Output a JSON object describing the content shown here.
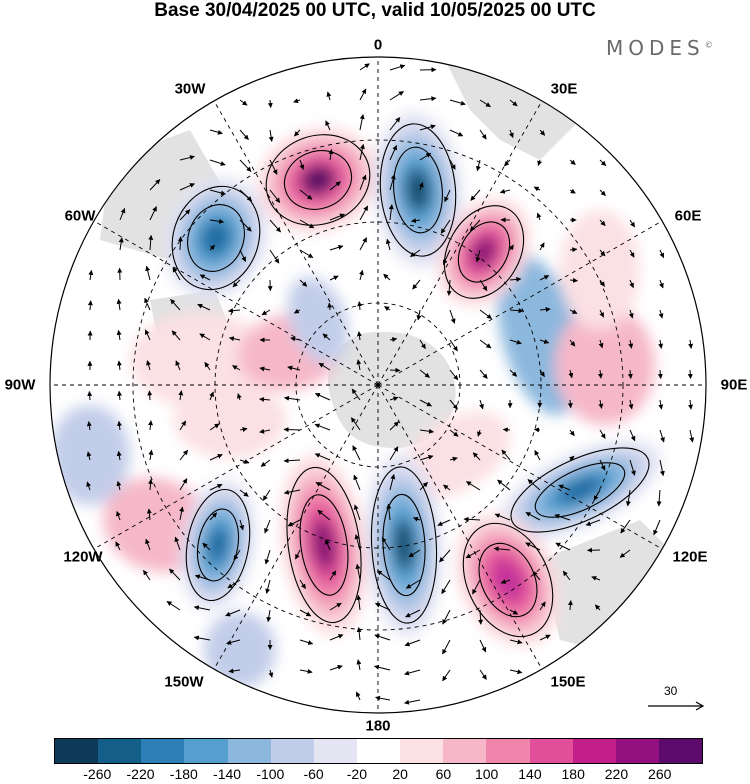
{
  "title": "Base 30/04/2025 00 UTC, valid 10/05/2025 00 UTC",
  "brand": {
    "name": "MODES",
    "mark": "©"
  },
  "map": {
    "projection": "south-polar-stereographic",
    "graticule": "dashed",
    "longitude_labels": {
      "top": "0",
      "upper_left_30": "30W",
      "upper_right_30": "30E",
      "left_60": "60W",
      "right_60": "60E",
      "left_90": "90W",
      "right_90": "90E",
      "lower_left_120": "120W",
      "lower_right_120": "120E",
      "lower_left_150": "150W",
      "lower_right_150": "150E",
      "bottom": "180"
    },
    "reference_vector": "30",
    "anomaly_centers": [
      {
        "name": "positive-anomaly",
        "lon_hint": "30W",
        "color": "#5a0a64"
      },
      {
        "name": "negative-anomaly",
        "lon_hint": "15E",
        "color": "#134e6f"
      },
      {
        "name": "positive-anomaly",
        "lon_hint": "40E",
        "color": "#8a1474"
      },
      {
        "name": "negative-anomaly",
        "lon_hint": "60W",
        "color": "#1f6aa0"
      },
      {
        "name": "negative-anomaly",
        "lon_hint": "105E",
        "color": "#1f6aa0"
      },
      {
        "name": "positive-anomaly",
        "lon_hint": "160W",
        "color": "#8a1474"
      },
      {
        "name": "negative-anomaly",
        "lon_hint": "175E",
        "color": "#134e6f"
      },
      {
        "name": "negative-anomaly",
        "lon_hint": "135W",
        "color": "#1f6aa0"
      },
      {
        "name": "positive-anomaly",
        "lon_hint": "150E",
        "color": "#c2329a"
      }
    ]
  },
  "colorbar": {
    "colors": [
      "#0c3a57",
      "#135f8a",
      "#2b7fb6",
      "#559fcf",
      "#8cb8de",
      "#c2cde9",
      "#e4e4f3",
      "#ffffff",
      "#fbe0e4",
      "#f6b8c9",
      "#ef85ab",
      "#e14f9a",
      "#c21f8a",
      "#931080",
      "#5c0a6c"
    ],
    "labels": [
      "-260",
      "-220",
      "-180",
      "-140",
      "-100",
      "-60",
      "-20",
      "20",
      "60",
      "100",
      "140",
      "180",
      "220",
      "260"
    ]
  }
}
